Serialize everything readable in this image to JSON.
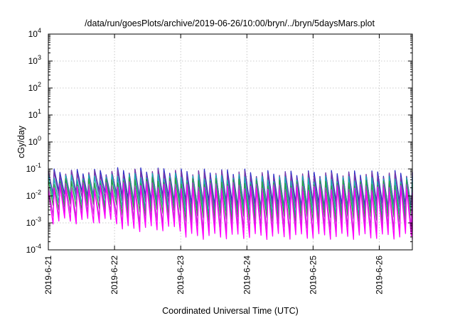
{
  "chart_data": {
    "type": "line",
    "title": "/data/run/goesPlots/archive/2019-06-26/10:00/bryn/../bryn/5daysMars.plot",
    "xlabel": "Coordinated Universal Time (UTC)",
    "ylabel": "cGy/day",
    "x_axis": {
      "type": "date",
      "range": [
        "2019-06-21T00:00",
        "2019-06-26T12:00"
      ],
      "ticks": [
        "2019-6-21",
        "2019-6-22",
        "2019-6-23",
        "2019-6-24",
        "2019-6-25",
        "2019-6-26"
      ]
    },
    "y_axis": {
      "type": "log",
      "range": [
        0.0001,
        10000
      ],
      "ticks": [
        {
          "mantissa": "10",
          "exponent": "4"
        },
        {
          "mantissa": "10",
          "exponent": "3"
        },
        {
          "mantissa": "10",
          "exponent": "2"
        },
        {
          "mantissa": "10",
          "exponent": "1"
        },
        {
          "mantissa": "10",
          "exponent": "0"
        },
        {
          "mantissa": "10",
          "exponent": "-1"
        },
        {
          "mantissa": "10",
          "exponent": "-2"
        },
        {
          "mantissa": "10",
          "exponent": "-3"
        },
        {
          "mantissa": "10",
          "exponent": "-4"
        }
      ]
    },
    "grid": true,
    "legend": "none",
    "pattern": {
      "cycles_per_day": 11.5,
      "peak_range": [
        0.05,
        0.1
      ],
      "dose_rates_by_day": [
        {
          "date": "2019-06-21",
          "peak": 0.08,
          "trough": 0.004
        },
        {
          "date": "2019-06-22",
          "peak": 0.09,
          "trough": 0.002
        },
        {
          "date": "2019-06-23",
          "peak": 0.08,
          "trough": 0.001
        },
        {
          "date": "2019-06-24",
          "peak": 0.07,
          "trough": 0.001
        },
        {
          "date": "2019-06-25",
          "peak": 0.07,
          "trough": 0.001
        },
        {
          "date": "2019-06-26",
          "peak": 0.07,
          "trough": 0.001
        }
      ]
    },
    "series": [
      {
        "color": "#3030c8",
        "peak": 0.08,
        "trough": 0.012
      },
      {
        "color": "#7a3aa8",
        "peak": 0.07,
        "trough": 0.009
      },
      {
        "color": "#18b0b0",
        "peak": 0.05,
        "trough": 0.006
      },
      {
        "color": "#2aa040",
        "peak": 0.035,
        "trough": 0.004
      },
      {
        "color": "#b040c0",
        "peak": 0.025,
        "trough": 0.002
      },
      {
        "color": "#ff00ff",
        "peak": 0.02,
        "trough": 0.0012
      }
    ]
  }
}
